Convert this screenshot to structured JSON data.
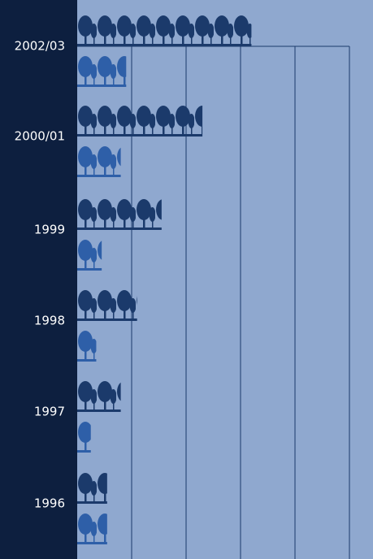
{
  "chart_data": {
    "type": "pictogram-bar",
    "categories": [
      "2002/03",
      "2000/01",
      "1999",
      "1998",
      "1997",
      "1996"
    ],
    "series": [
      {
        "color": "#1b3a6b",
        "values": [
          3.2,
          2.3,
          1.55,
          1.1,
          0.8,
          0.55
        ]
      },
      {
        "color": "#2e5fa8",
        "values": [
          0.9,
          0.8,
          0.45,
          0.35,
          0.25,
          0.55
        ]
      }
    ],
    "xlim": [
      0,
      5
    ],
    "xticks": [
      1,
      2,
      3,
      4,
      5
    ],
    "grid": true
  }
}
